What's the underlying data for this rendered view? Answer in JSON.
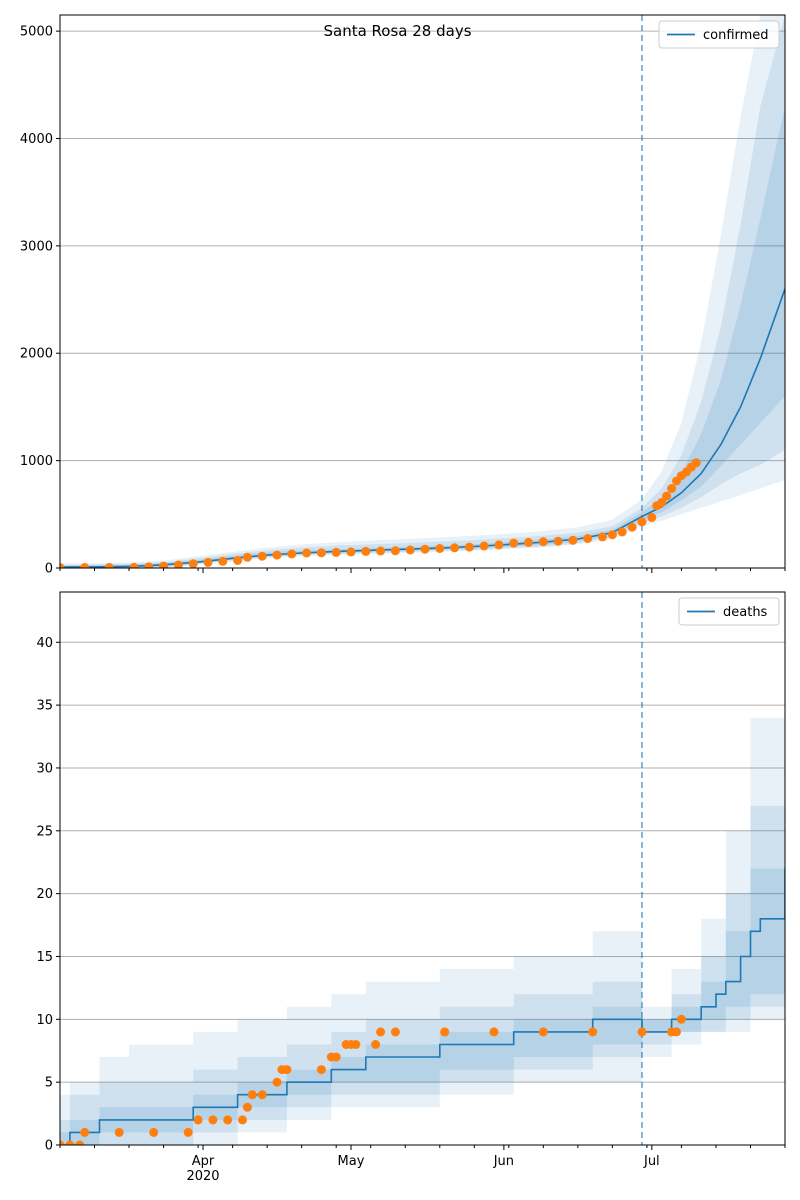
{
  "colors": {
    "model_line": "#1f77b4",
    "observed_points": "#ff7f0e",
    "band_fill": "#1f77b4",
    "forecast_start_line": "#1f77b4",
    "grid": "#b0b0b0"
  },
  "chart_data": [
    {
      "type": "line",
      "title": "Santa Rosa 28 days",
      "xlabel": "",
      "ylabel": "",
      "x_range": [
        "2020-03-03",
        "2020-07-28"
      ],
      "ylim": [
        0,
        5150
      ],
      "yticks": [
        0,
        1000,
        2000,
        3000,
        4000,
        5000
      ],
      "xticks": [
        "2020-04-01",
        "2020-05-01",
        "2020-06-01",
        "2020-07-01"
      ],
      "xticks_labels": [
        "Apr\n2020",
        "May",
        "Jun",
        "Jul"
      ],
      "show_xtick_labels": false,
      "grid": "horizontal",
      "legend": {
        "placement": "top-right",
        "entries": [
          "confirmed"
        ]
      },
      "forecast_start": "2020-06-29",
      "model": {
        "name": "confirmed",
        "x": [
          "2020-03-03",
          "2020-03-10",
          "2020-03-17",
          "2020-03-24",
          "2020-03-31",
          "2020-04-07",
          "2020-04-14",
          "2020-04-21",
          "2020-04-28",
          "2020-05-05",
          "2020-05-12",
          "2020-05-19",
          "2020-05-26",
          "2020-06-02",
          "2020-06-09",
          "2020-06-16",
          "2020-06-23",
          "2020-06-29",
          "2020-07-03",
          "2020-07-07",
          "2020-07-11",
          "2020-07-15",
          "2020-07-19",
          "2020-07-23",
          "2020-07-28"
        ],
        "values": [
          8,
          10,
          15,
          30,
          55,
          90,
          120,
          140,
          155,
          165,
          175,
          185,
          200,
          220,
          240,
          270,
          330,
          480,
          570,
          700,
          880,
          1150,
          1500,
          1950,
          2600
        ],
        "bands": [
          {
            "lower": [
              0,
              0,
              0,
              0,
              30,
              60,
              90,
              110,
              120,
              130,
              140,
              150,
              160,
              175,
              190,
              220,
              270,
              390,
              440,
              500,
              560,
              620,
              680,
              740,
              820
            ],
            "upper": [
              40,
              45,
              50,
              70,
              110,
              150,
              190,
              220,
              240,
              255,
              270,
              285,
              300,
              320,
              345,
              380,
              450,
              640,
              900,
              1350,
              2100,
              3100,
              4200,
              5150,
              5150
            ]
          },
          {
            "lower": [
              0,
              0,
              0,
              5,
              40,
              70,
              100,
              120,
              130,
              140,
              150,
              160,
              170,
              185,
              200,
              230,
              290,
              420,
              480,
              560,
              660,
              780,
              880,
              960,
              1100
            ],
            "upper": [
              30,
              35,
              40,
              55,
              90,
              130,
              165,
              190,
              210,
              220,
              232,
              245,
              260,
              280,
              300,
              330,
              390,
              560,
              740,
              1050,
              1550,
              2250,
              3200,
              4300,
              5150
            ]
          },
          {
            "lower": [
              0,
              0,
              3,
              12,
              45,
              78,
              108,
              128,
              140,
              150,
              160,
              170,
              182,
              198,
              215,
              248,
              305,
              445,
              520,
              630,
              760,
              950,
              1150,
              1350,
              1600
            ],
            "upper": [
              22,
              25,
              30,
              45,
              75,
              112,
              145,
              162,
              175,
              185,
              195,
              205,
              222,
              242,
              265,
              295,
              355,
              520,
              650,
              880,
              1250,
              1750,
              2450,
              3250,
              4300
            ]
          }
        ]
      },
      "observed": {
        "x": [
          "2020-03-03",
          "2020-03-08",
          "2020-03-13",
          "2020-03-18",
          "2020-03-21",
          "2020-03-24",
          "2020-03-27",
          "2020-03-30",
          "2020-04-02",
          "2020-04-05",
          "2020-04-08",
          "2020-04-10",
          "2020-04-13",
          "2020-04-16",
          "2020-04-19",
          "2020-04-22",
          "2020-04-25",
          "2020-04-28",
          "2020-05-01",
          "2020-05-04",
          "2020-05-07",
          "2020-05-10",
          "2020-05-13",
          "2020-05-16",
          "2020-05-19",
          "2020-05-22",
          "2020-05-25",
          "2020-05-28",
          "2020-05-31",
          "2020-06-03",
          "2020-06-06",
          "2020-06-09",
          "2020-06-12",
          "2020-06-15",
          "2020-06-18",
          "2020-06-21",
          "2020-06-23",
          "2020-06-25",
          "2020-06-27",
          "2020-06-29",
          "2020-07-01",
          "2020-07-02",
          "2020-07-03",
          "2020-07-04",
          "2020-07-05",
          "2020-07-06",
          "2020-07-07",
          "2020-07-08",
          "2020-07-09",
          "2020-07-10"
        ],
        "values": [
          5,
          5,
          5,
          6,
          10,
          18,
          28,
          40,
          52,
          62,
          70,
          100,
          110,
          120,
          130,
          140,
          142,
          145,
          150,
          155,
          158,
          160,
          168,
          175,
          182,
          188,
          195,
          205,
          215,
          232,
          238,
          245,
          250,
          258,
          275,
          290,
          310,
          335,
          380,
          430,
          470,
          580,
          610,
          670,
          740,
          810,
          860,
          895,
          940,
          980
        ]
      }
    },
    {
      "type": "line",
      "title": "",
      "xlabel": "",
      "ylabel": "",
      "x_range": [
        "2020-03-03",
        "2020-07-28"
      ],
      "ylim": [
        0,
        44
      ],
      "yticks": [
        0,
        5,
        10,
        15,
        20,
        25,
        30,
        35,
        40
      ],
      "xticks": [
        "2020-04-01",
        "2020-05-01",
        "2020-06-01",
        "2020-07-01"
      ],
      "xticks_labels": [
        "Apr\n2020",
        "May",
        "Jun",
        "Jul"
      ],
      "show_xtick_labels": true,
      "grid": "horizontal",
      "legend": {
        "placement": "top-right",
        "entries": [
          "deaths"
        ]
      },
      "forecast_start": "2020-06-29",
      "model": {
        "name": "deaths",
        "steps": [
          [
            "2020-03-03",
            0
          ],
          [
            "2020-03-05",
            1
          ],
          [
            "2020-03-11",
            2
          ],
          [
            "2020-03-30",
            3
          ],
          [
            "2020-04-08",
            4
          ],
          [
            "2020-04-18",
            5
          ],
          [
            "2020-04-27",
            6
          ],
          [
            "2020-05-04",
            7
          ],
          [
            "2020-05-19",
            8
          ],
          [
            "2020-06-03",
            9
          ],
          [
            "2020-06-19",
            10
          ],
          [
            "2020-06-29",
            9
          ],
          [
            "2020-07-05",
            10
          ],
          [
            "2020-07-11",
            11
          ],
          [
            "2020-07-14",
            12
          ],
          [
            "2020-07-16",
            13
          ],
          [
            "2020-07-19",
            15
          ],
          [
            "2020-07-21",
            17
          ],
          [
            "2020-07-23",
            18
          ],
          [
            "2020-07-28",
            22
          ]
        ],
        "bands": [
          {
            "steps": [
              [
                "2020-03-03",
                0,
                4
              ],
              [
                "2020-03-05",
                0,
                5
              ],
              [
                "2020-03-11",
                0,
                7
              ],
              [
                "2020-03-17",
                0,
                8
              ],
              [
                "2020-03-30",
                0,
                9
              ],
              [
                "2020-04-08",
                1,
                10
              ],
              [
                "2020-04-18",
                2,
                11
              ],
              [
                "2020-04-27",
                3,
                12
              ],
              [
                "2020-05-04",
                3,
                13
              ],
              [
                "2020-05-19",
                4,
                14
              ],
              [
                "2020-06-03",
                5,
                15
              ],
              [
                "2020-06-19",
                5,
                17
              ],
              [
                "2020-06-29",
                7,
                11
              ],
              [
                "2020-07-05",
                8,
                14
              ],
              [
                "2020-07-11",
                9,
                18
              ],
              [
                "2020-07-16",
                9,
                25
              ],
              [
                "2020-07-21",
                10,
                34
              ],
              [
                "2020-07-28",
                11,
                44
              ]
            ]
          },
          {
            "steps": [
              [
                "2020-03-03",
                0,
                2
              ],
              [
                "2020-03-05",
                0,
                4
              ],
              [
                "2020-03-11",
                0,
                5
              ],
              [
                "2020-03-30",
                1,
                6
              ],
              [
                "2020-04-08",
                2,
                7
              ],
              [
                "2020-04-18",
                3,
                8
              ],
              [
                "2020-04-27",
                4,
                9
              ],
              [
                "2020-05-04",
                4,
                10
              ],
              [
                "2020-05-19",
                5,
                11
              ],
              [
                "2020-06-03",
                6,
                12
              ],
              [
                "2020-06-19",
                7,
                13
              ],
              [
                "2020-06-29",
                8,
                10
              ],
              [
                "2020-07-05",
                9,
                12
              ],
              [
                "2020-07-11",
                9,
                15
              ],
              [
                "2020-07-16",
                10,
                20
              ],
              [
                "2020-07-21",
                11,
                27
              ],
              [
                "2020-07-28",
                13,
                38
              ]
            ]
          },
          {
            "steps": [
              [
                "2020-03-03",
                0,
                1
              ],
              [
                "2020-03-05",
                0,
                2
              ],
              [
                "2020-03-11",
                1,
                3
              ],
              [
                "2020-03-30",
                2,
                4
              ],
              [
                "2020-04-08",
                3,
                5
              ],
              [
                "2020-04-18",
                4,
                6
              ],
              [
                "2020-04-27",
                5,
                7
              ],
              [
                "2020-05-04",
                5,
                8
              ],
              [
                "2020-05-19",
                6,
                9
              ],
              [
                "2020-06-03",
                7,
                10
              ],
              [
                "2020-06-19",
                8,
                11
              ],
              [
                "2020-06-29",
                9,
                10
              ],
              [
                "2020-07-05",
                9,
                11
              ],
              [
                "2020-07-11",
                10,
                13
              ],
              [
                "2020-07-16",
                11,
                17
              ],
              [
                "2020-07-21",
                12,
                22
              ],
              [
                "2020-07-28",
                14,
                30
              ]
            ]
          }
        ]
      },
      "observed": {
        "x": [
          "2020-03-03",
          "2020-03-05",
          "2020-03-07",
          "2020-03-08",
          "2020-03-15",
          "2020-03-22",
          "2020-03-29",
          "2020-03-31",
          "2020-04-03",
          "2020-04-06",
          "2020-04-09",
          "2020-04-10",
          "2020-04-11",
          "2020-04-13",
          "2020-04-16",
          "2020-04-17",
          "2020-04-18",
          "2020-04-25",
          "2020-04-27",
          "2020-04-28",
          "2020-04-30",
          "2020-05-01",
          "2020-05-02",
          "2020-05-06",
          "2020-05-07",
          "2020-05-10",
          "2020-05-20",
          "2020-05-30",
          "2020-06-09",
          "2020-06-19",
          "2020-06-29",
          "2020-07-05",
          "2020-07-06",
          "2020-07-07"
        ],
        "values": [
          0,
          0,
          0,
          1,
          1,
          1,
          1,
          2,
          2,
          2,
          2,
          3,
          4,
          4,
          5,
          6,
          6,
          6,
          7,
          7,
          8,
          8,
          8,
          8,
          9,
          9,
          9,
          9,
          9,
          9,
          9,
          9,
          9,
          10
        ]
      }
    }
  ]
}
